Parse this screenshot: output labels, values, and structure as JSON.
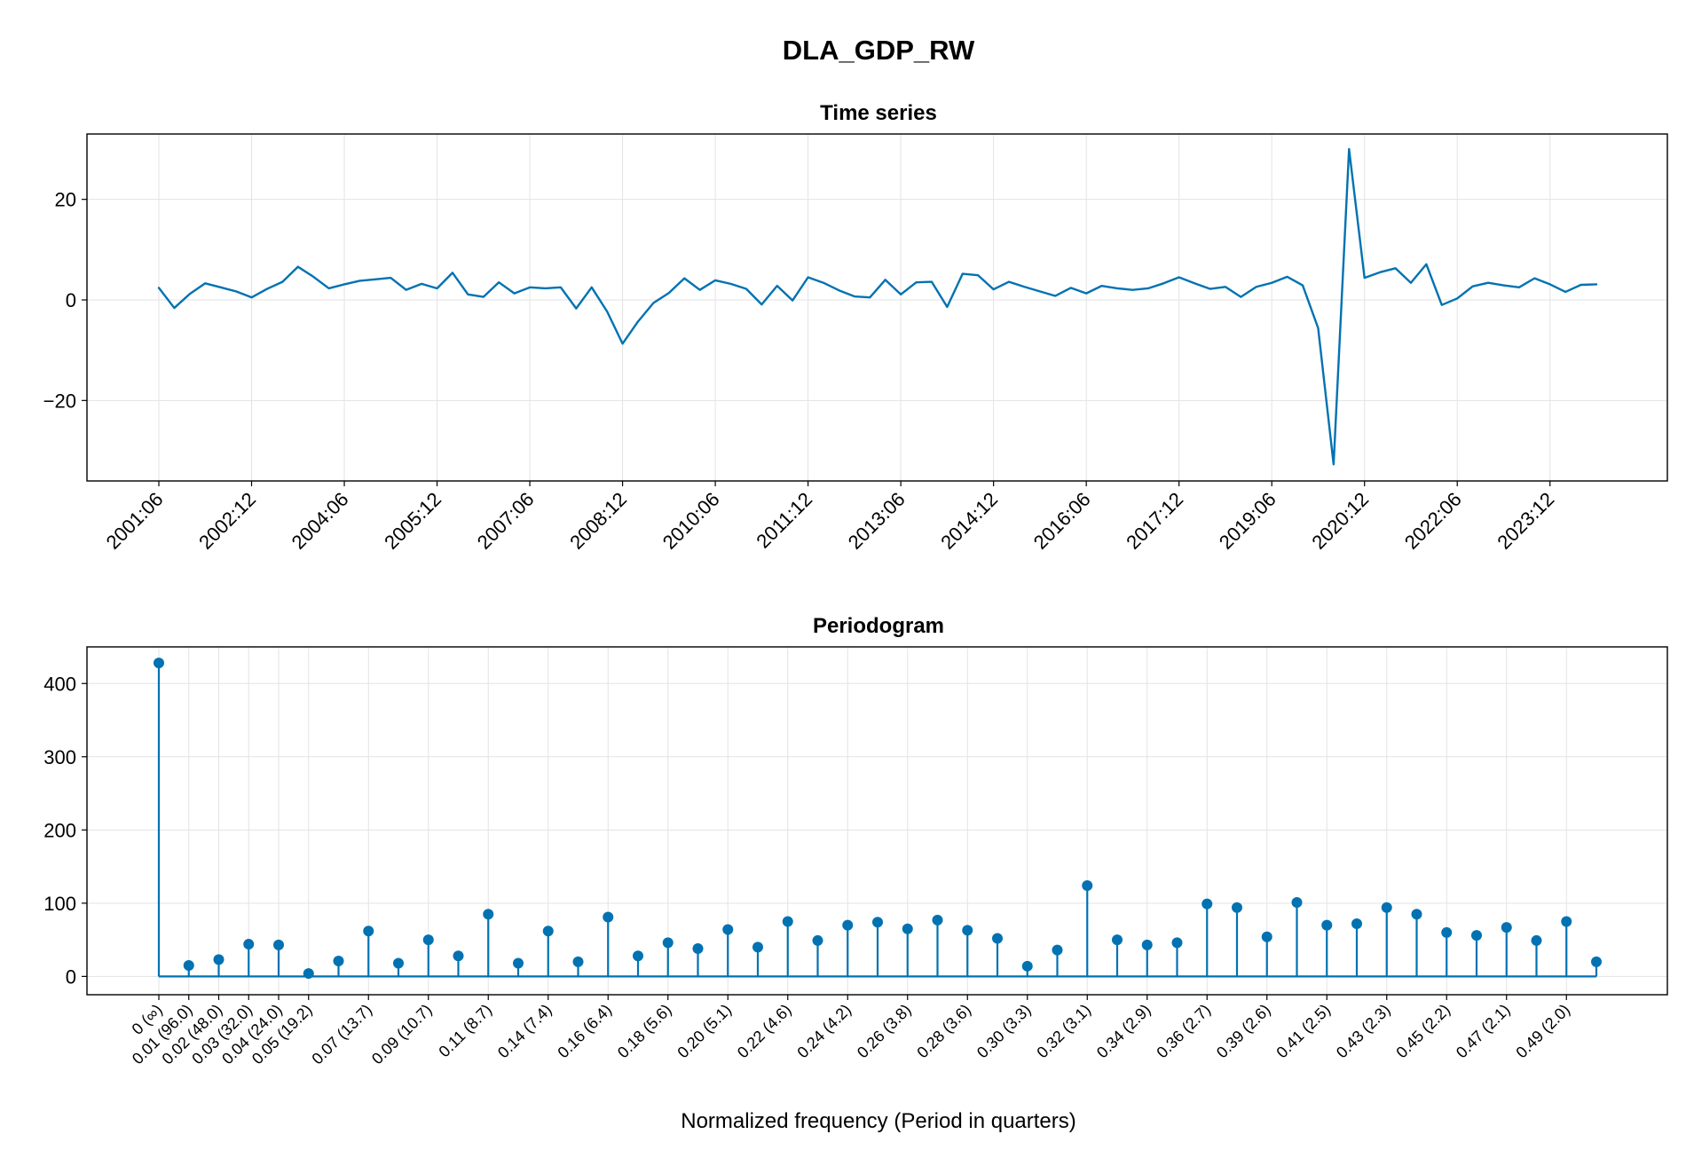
{
  "figure": {
    "title": "DLA_GDP_RW"
  },
  "colors": {
    "series": "#0072b2",
    "grid": "#e3e3e3",
    "axis": "#000000"
  },
  "chart_data": [
    {
      "type": "line",
      "title": "Time series",
      "xlabel": "",
      "ylabel": "",
      "ylim": [
        -36,
        33
      ],
      "yticks": [
        -20,
        0,
        20
      ],
      "ytick_labels": [
        "−20",
        "0",
        "20"
      ],
      "grid": true,
      "legend": "none",
      "xtick_labels": [
        "2001:06",
        "2002:12",
        "2004:06",
        "2005:12",
        "2007:06",
        "2008:12",
        "2010:06",
        "2011:12",
        "2013:06",
        "2014:12",
        "2016:06",
        "2017:12",
        "2019:06",
        "2020:12",
        "2022:06",
        "2023:12"
      ],
      "xtick_every_n_quarters": 6,
      "x_start": "2001:06",
      "x_frequency": "quarterly",
      "series": [
        {
          "values": [
            2.4,
            -1.6,
            1.2,
            3.3,
            2.5,
            1.7,
            0.5,
            2.2,
            3.6,
            6.6,
            4.6,
            2.3,
            3.1,
            3.8,
            4.1,
            4.4,
            2.0,
            3.2,
            2.3,
            5.4,
            1.1,
            0.6,
            3.5,
            1.3,
            2.5,
            2.3,
            2.5,
            -1.7,
            2.5,
            -2.3,
            -8.7,
            -4.3,
            -0.6,
            1.4,
            4.3,
            2.0,
            3.9,
            3.2,
            2.2,
            -0.9,
            2.8,
            -0.1,
            4.5,
            3.4,
            1.9,
            0.7,
            0.5,
            4.0,
            1.1,
            3.5,
            3.6,
            -1.4,
            5.2,
            4.9,
            2.1,
            3.6,
            2.6,
            1.7,
            0.8,
            2.4,
            1.3,
            2.8,
            2.3,
            2.0,
            2.3,
            3.3,
            4.5,
            3.3,
            2.2,
            2.6,
            0.6,
            2.6,
            3.4,
            4.6,
            2.9,
            -5.6,
            -32.7,
            30.0,
            4.4,
            5.5,
            6.3,
            3.4,
            7.1,
            -1.0,
            0.3,
            2.7,
            3.4,
            2.9,
            2.5,
            4.3,
            3.1,
            1.6,
            3.0,
            3.1
          ]
        }
      ]
    },
    {
      "type": "stem",
      "title": "Periodogram",
      "xlabel": "Normalized frequency (Period in quarters)",
      "ylabel": "",
      "ylim": [
        -25,
        450
      ],
      "yticks": [
        0,
        100,
        200,
        300,
        400
      ],
      "ytick_labels": [
        "0",
        "100",
        "200",
        "300",
        "400"
      ],
      "grid": true,
      "legend": "none",
      "xtick_labels": [
        "0 (∞)",
        "0.01 (96.0)",
        "0.02 (48.0)",
        "0.03 (32.0)",
        "0.04 (24.0)",
        "0.05 (19.2)",
        "0.07 (13.7)",
        "0.09 (10.7)",
        "0.11 (8.7)",
        "0.14 (7.4)",
        "0.16 (6.4)",
        "0.18 (5.6)",
        "0.20 (5.1)",
        "0.22 (4.6)",
        "0.24 (4.2)",
        "0.26 (3.8)",
        "0.28 (3.6)",
        "0.30 (3.3)",
        "0.32 (3.1)",
        "0.34 (2.9)",
        "0.36 (2.7)",
        "0.39 (2.6)",
        "0.41 (2.5)",
        "0.43 (2.3)",
        "0.45 (2.2)",
        "0.47 (2.1)",
        "0.49 (2.0)"
      ],
      "xtick_positions": [
        0,
        1,
        2,
        3,
        4,
        5,
        7,
        9,
        11,
        13,
        15,
        17,
        19,
        21,
        23,
        25,
        27,
        29,
        31,
        33,
        35,
        37,
        39,
        41,
        43,
        45,
        47
      ],
      "values": [
        428,
        15,
        23,
        44,
        43,
        4,
        21,
        62,
        18,
        50,
        28,
        85,
        18,
        62,
        20,
        81,
        28,
        46,
        38,
        64,
        40,
        75,
        49,
        70,
        74,
        65,
        77,
        63,
        52,
        14,
        36,
        124,
        50,
        43,
        46,
        99,
        94,
        54,
        101,
        70,
        72,
        94,
        85,
        60,
        56,
        67,
        49,
        75,
        20
      ]
    }
  ]
}
